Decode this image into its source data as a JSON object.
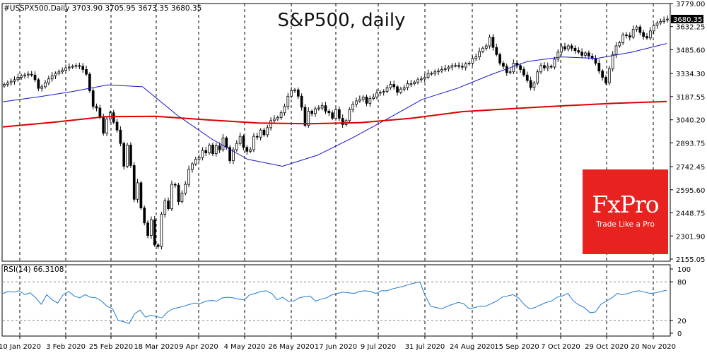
{
  "chart_data": [
    {
      "type": "candlestick",
      "title": "S&P500, daily",
      "header": "#USSPX500,Daily  3703.90 3705.95 3673.35 3680.35",
      "last_price": "3680.35",
      "y_tick_labels": [
        "3779.00",
        "3632.25",
        "3485.60",
        "3334.30",
        "3187.55",
        "3040.20",
        "2893.75",
        "2742.45",
        "2595.60",
        "2448.75",
        "2301.90",
        "2155.05"
      ],
      "ylim": [
        2155.05,
        3779.0
      ],
      "x_tick_labels": [
        "10 Jan 2020",
        "3 Feb 2020",
        "25 Feb 2020",
        "18 Mar 2020",
        "9 Apr 2020",
        "4 May 2020",
        "26 May 2020",
        "17 Jun 2020",
        "9 Jul 2020",
        "31 Jul 2020",
        "24 Aug 2020",
        "15 Sep 2020",
        "7 Oct 2020",
        "29 Oct 2020",
        "20 Nov 2020"
      ],
      "grid": "vertical dashed lines at date ticks",
      "series": [
        {
          "name": "",
          "kind": "close",
          "color": "#000000",
          "values": [
            3265,
            3275,
            3285,
            3295,
            3310,
            3320,
            3325,
            3330,
            3325,
            3295,
            3240,
            3250,
            3275,
            3300,
            3320,
            3335,
            3345,
            3355,
            3370,
            3375,
            3380,
            3385,
            3380,
            3360,
            3330,
            3225,
            3125,
            3115,
            3055,
            2955,
            3045,
            3085,
            3025,
            2975,
            2890,
            2745,
            2880,
            2750,
            2535,
            2640,
            2480,
            2385,
            2305,
            2405,
            2245,
            2235,
            2440,
            2525,
            2475,
            2630,
            2625,
            2520,
            2575,
            2630,
            2725,
            2760,
            2790,
            2800,
            2845,
            2830,
            2880,
            2825,
            2875,
            2850,
            2925,
            2865,
            2780,
            2850,
            2890,
            2935,
            2865,
            2840,
            2850,
            2935,
            2930,
            2975,
            2945,
            2990,
            3035,
            3045,
            3055,
            3085,
            3125,
            3190,
            3225,
            3230,
            3190,
            3120,
            3005,
            3095,
            3080,
            3110,
            3115,
            3130,
            3095,
            3085,
            3050,
            3105,
            3050,
            3010,
            3035,
            3105,
            3140,
            3160,
            3170,
            3185,
            3145,
            3175,
            3185,
            3210,
            3215,
            3220,
            3245,
            3265,
            3250,
            3215,
            3235,
            3245,
            3270,
            3270,
            3280,
            3295,
            3300,
            3310,
            3335,
            3335,
            3345,
            3350,
            3360,
            3365,
            3375,
            3385,
            3385,
            3380,
            3375,
            3395,
            3400,
            3430,
            3440,
            3475,
            3495,
            3510,
            3565,
            3500,
            3455,
            3400,
            3380,
            3340,
            3345,
            3400,
            3385,
            3360,
            3325,
            3290,
            3245,
            3275,
            3345,
            3385,
            3370,
            3380,
            3375,
            3425,
            3470,
            3505,
            3490,
            3510,
            3495,
            3480,
            3470,
            3450,
            3465,
            3445,
            3430,
            3400,
            3350,
            3310,
            3275,
            3365,
            3455,
            3510,
            3530,
            3580,
            3575,
            3565,
            3615,
            3630,
            3595,
            3570,
            3560,
            3605,
            3640,
            3655,
            3665,
            3675,
            3680
          ]
        },
        {
          "name": "",
          "kind": "moving average (blue)",
          "color": "#1414c8",
          "values": [
            3155,
            3185,
            3220,
            3262,
            3250,
            3068,
            2915,
            2790,
            2745,
            2815,
            2925,
            3045,
            3170,
            3240,
            3330,
            3410,
            3440,
            3430,
            3470,
            3525
          ]
        },
        {
          "name": "",
          "kind": "moving average (red)",
          "color": "#dc0000",
          "values": [
            2995,
            3025,
            3060,
            3062,
            3040,
            3020,
            3015,
            3022,
            3050,
            3092,
            3112,
            3130,
            3145,
            3157
          ]
        }
      ]
    },
    {
      "type": "line",
      "title": "RSI(14) 66.3108",
      "y_tick_labels": [
        "100",
        "80",
        "20",
        "0"
      ],
      "ylim": [
        0,
        100
      ],
      "series": [
        {
          "name": "RSI(14)",
          "color": "#1e78d0",
          "values": [
            62,
            65,
            64,
            66,
            60,
            63,
            55,
            45,
            60,
            52,
            47,
            60,
            65,
            58,
            55,
            60,
            56,
            55,
            50,
            42,
            38,
            20,
            18,
            15,
            30,
            36,
            25,
            28,
            26,
            24,
            33,
            38,
            40,
            42,
            45,
            47,
            46,
            50,
            51,
            50,
            55,
            56,
            55,
            53,
            52,
            60,
            62,
            65,
            66,
            62,
            52,
            56,
            50,
            50,
            55,
            57,
            58,
            50,
            53,
            55,
            60,
            62,
            64,
            63,
            62,
            65,
            66,
            65,
            62,
            66,
            66,
            69,
            71,
            73,
            76,
            78,
            80,
            58,
            42,
            40,
            38,
            42,
            45,
            48,
            46,
            38,
            40,
            42,
            42,
            46,
            50,
            56,
            58,
            60,
            55,
            45,
            38,
            40,
            44,
            48,
            50,
            56,
            58,
            62,
            50,
            44,
            40,
            32,
            33,
            45,
            50,
            55,
            62,
            60,
            62,
            65,
            66,
            64,
            62,
            63,
            65,
            67
          ]
        }
      ]
    }
  ]
}
